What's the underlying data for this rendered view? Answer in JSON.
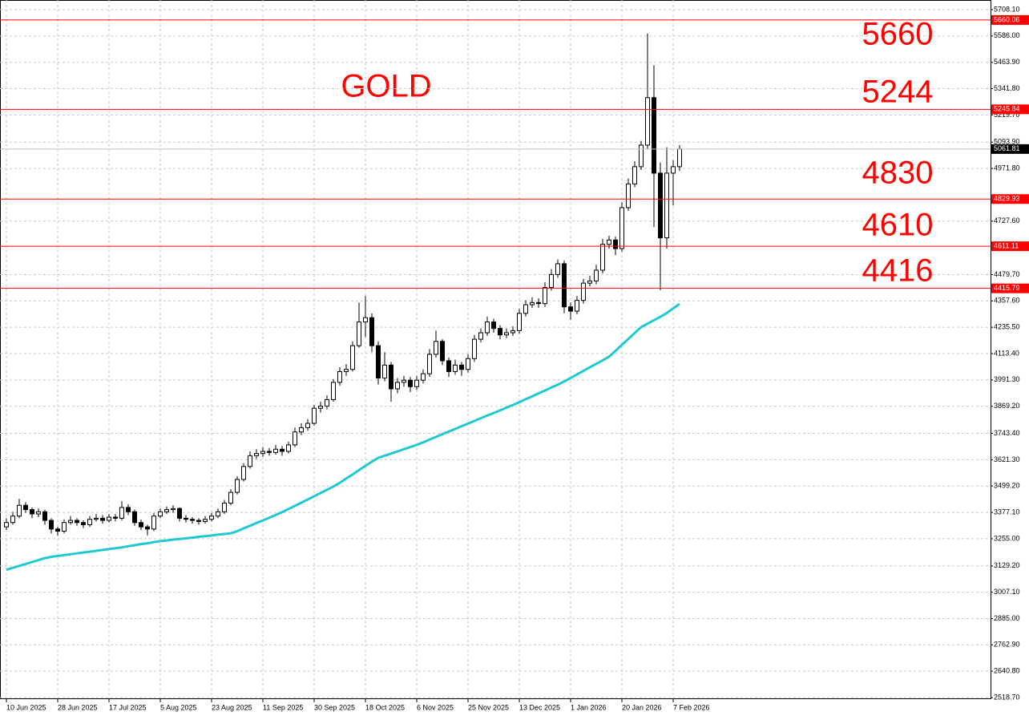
{
  "chart_data": {
    "type": "candlestick",
    "title": "GOLD",
    "annotations": [
      "5660",
      "5244",
      "4830",
      "4610",
      "4416"
    ],
    "ylim": [
      2518.7,
      5708.1
    ],
    "yticks": [
      {
        "value": 5708.1,
        "label": "5708.10"
      },
      {
        "value": 5586,
        "label": "5586.00"
      },
      {
        "value": 5463.9,
        "label": "5463.90"
      },
      {
        "value": 5341.8,
        "label": "5341.80"
      },
      {
        "value": 5219.7,
        "label": "5219.70"
      },
      {
        "value": 5093.9,
        "label": "5093.90"
      },
      {
        "value": 4971.8,
        "label": "4971.80"
      },
      {
        "value": 4727.6,
        "label": "4727.60"
      },
      {
        "value": 4479.7,
        "label": "4479.70"
      },
      {
        "value": 4357.6,
        "label": "4357.60"
      },
      {
        "value": 4235.5,
        "label": "4235.50"
      },
      {
        "value": 4113.4,
        "label": "4113.40"
      },
      {
        "value": 3991.3,
        "label": "3991.30"
      },
      {
        "value": 3869.2,
        "label": "3869.20"
      },
      {
        "value": 3743.4,
        "label": "3743.40"
      },
      {
        "value": 3621.3,
        "label": "3621.30"
      },
      {
        "value": 3499.2,
        "label": "3499.20"
      },
      {
        "value": 3377.1,
        "label": "3377.10"
      },
      {
        "value": 3255,
        "label": "3255.00"
      },
      {
        "value": 3129.2,
        "label": "3129.20"
      },
      {
        "value": 3007.1,
        "label": "3007.10"
      },
      {
        "value": 2885,
        "label": "2885.00"
      },
      {
        "value": 2762.9,
        "label": "2762.90"
      },
      {
        "value": 2640.8,
        "label": "2640.80"
      },
      {
        "value": 2518.7,
        "label": "2518.70"
      }
    ],
    "levels": [
      5660.06,
      5245.84,
      4829.93,
      4611.11,
      4415.79
    ],
    "level_color": "#ff0000",
    "last_price": 5061.81,
    "grid": true,
    "categories": [
      "10 Jun 2025",
      null,
      null,
      null,
      null,
      null,
      null,
      null,
      "28 Jun 2025",
      null,
      null,
      null,
      null,
      null,
      null,
      null,
      "17 Jul 2025",
      null,
      null,
      null,
      null,
      null,
      null,
      null,
      "5 Aug 2025",
      null,
      null,
      null,
      null,
      null,
      null,
      null,
      "23 Aug 2025",
      null,
      null,
      null,
      null,
      null,
      null,
      null,
      "11 Sep 2025",
      null,
      null,
      null,
      null,
      null,
      null,
      null,
      "30 Sep 2025",
      null,
      null,
      null,
      null,
      null,
      null,
      null,
      "18 Oct 2025",
      null,
      null,
      null,
      null,
      null,
      null,
      null,
      "6 Nov 2025",
      null,
      null,
      null,
      null,
      null,
      null,
      null,
      "25 Nov 2025",
      null,
      null,
      null,
      null,
      null,
      null,
      null,
      "13 Dec 2025",
      null,
      null,
      null,
      null,
      null,
      null,
      null,
      "1 Jan 2026",
      null,
      null,
      null,
      null,
      null,
      null,
      null,
      "20 Jan 2026",
      null,
      null,
      null,
      null,
      null,
      null,
      null,
      "7 Feb 2026",
      null
    ],
    "candles": [
      [
        3310,
        3350,
        3295,
        3330
      ],
      [
        3330,
        3380,
        3320,
        3360
      ],
      [
        3360,
        3440,
        3350,
        3410
      ],
      [
        3410,
        3425,
        3375,
        3390
      ],
      [
        3390,
        3400,
        3350,
        3370
      ],
      [
        3370,
        3395,
        3355,
        3380
      ],
      [
        3380,
        3390,
        3320,
        3340
      ],
      [
        3340,
        3350,
        3280,
        3300
      ],
      [
        3300,
        3310,
        3270,
        3290
      ],
      [
        3290,
        3345,
        3280,
        3330
      ],
      [
        3330,
        3360,
        3320,
        3340
      ],
      [
        3340,
        3350,
        3315,
        3330
      ],
      [
        3330,
        3340,
        3305,
        3320
      ],
      [
        3320,
        3360,
        3310,
        3345
      ],
      [
        3345,
        3370,
        3335,
        3350
      ],
      [
        3350,
        3365,
        3325,
        3340
      ],
      [
        3340,
        3370,
        3330,
        3355
      ],
      [
        3355,
        3370,
        3335,
        3350
      ],
      [
        3350,
        3430,
        3340,
        3400
      ],
      [
        3400,
        3415,
        3365,
        3380
      ],
      [
        3380,
        3390,
        3315,
        3330
      ],
      [
        3330,
        3345,
        3295,
        3310
      ],
      [
        3310,
        3320,
        3270,
        3300
      ],
      [
        3300,
        3375,
        3290,
        3360
      ],
      [
        3360,
        3395,
        3350,
        3380
      ],
      [
        3380,
        3405,
        3370,
        3390
      ],
      [
        3390,
        3410,
        3375,
        3395
      ],
      [
        3395,
        3400,
        3335,
        3350
      ],
      [
        3350,
        3365,
        3330,
        3345
      ],
      [
        3345,
        3355,
        3325,
        3340
      ],
      [
        3340,
        3350,
        3320,
        3335
      ],
      [
        3335,
        3360,
        3325,
        3345
      ],
      [
        3345,
        3375,
        3335,
        3360
      ],
      [
        3360,
        3395,
        3350,
        3380
      ],
      [
        3380,
        3435,
        3370,
        3420
      ],
      [
        3420,
        3485,
        3410,
        3470
      ],
      [
        3470,
        3545,
        3460,
        3530
      ],
      [
        3530,
        3605,
        3520,
        3590
      ],
      [
        3590,
        3660,
        3580,
        3640
      ],
      [
        3640,
        3670,
        3625,
        3650
      ],
      [
        3650,
        3680,
        3635,
        3660
      ],
      [
        3660,
        3675,
        3640,
        3655
      ],
      [
        3655,
        3690,
        3645,
        3670
      ],
      [
        3670,
        3685,
        3640,
        3660
      ],
      [
        3660,
        3705,
        3650,
        3690
      ],
      [
        3690,
        3770,
        3680,
        3750
      ],
      [
        3750,
        3790,
        3735,
        3770
      ],
      [
        3770,
        3810,
        3755,
        3790
      ],
      [
        3790,
        3875,
        3780,
        3860
      ],
      [
        3860,
        3890,
        3840,
        3870
      ],
      [
        3870,
        3920,
        3855,
        3900
      ],
      [
        3900,
        3995,
        3890,
        3980
      ],
      [
        3980,
        4050,
        3965,
        4030
      ],
      [
        4030,
        4065,
        4010,
        4040
      ],
      [
        4040,
        4170,
        4030,
        4150
      ],
      [
        4150,
        4350,
        4140,
        4260
      ],
      [
        4260,
        4380,
        4190,
        4280
      ],
      [
        4280,
        4300,
        4120,
        4150
      ],
      [
        4150,
        4170,
        3970,
        4000
      ],
      [
        4000,
        4120,
        3985,
        4060
      ],
      [
        4060,
        4075,
        3890,
        3950
      ],
      [
        3950,
        4000,
        3930,
        3980
      ],
      [
        3980,
        4010,
        3960,
        3990
      ],
      [
        3990,
        4005,
        3935,
        3960
      ],
      [
        3960,
        4010,
        3945,
        3990
      ],
      [
        3990,
        4040,
        3975,
        4020
      ],
      [
        4020,
        4135,
        4005,
        4110
      ],
      [
        4110,
        4220,
        4095,
        4170
      ],
      [
        4170,
        4180,
        4060,
        4080
      ],
      [
        4080,
        4095,
        4005,
        4030
      ],
      [
        4030,
        4085,
        4015,
        4060
      ],
      [
        4060,
        4075,
        4010,
        4040
      ],
      [
        4040,
        4110,
        4025,
        4090
      ],
      [
        4090,
        4200,
        4075,
        4180
      ],
      [
        4180,
        4230,
        4165,
        4210
      ],
      [
        4210,
        4285,
        4195,
        4260
      ],
      [
        4260,
        4275,
        4210,
        4230
      ],
      [
        4230,
        4245,
        4180,
        4200
      ],
      [
        4200,
        4230,
        4185,
        4210
      ],
      [
        4210,
        4240,
        4195,
        4220
      ],
      [
        4220,
        4320,
        4205,
        4300
      ],
      [
        4300,
        4360,
        4285,
        4340
      ],
      [
        4340,
        4375,
        4325,
        4350
      ],
      [
        4350,
        4370,
        4325,
        4345
      ],
      [
        4345,
        4445,
        4330,
        4420
      ],
      [
        4420,
        4505,
        4405,
        4480
      ],
      [
        4480,
        4550,
        4465,
        4530
      ],
      [
        4530,
        4545,
        4300,
        4330
      ],
      [
        4330,
        4350,
        4270,
        4310
      ],
      [
        4310,
        4380,
        4295,
        4360
      ],
      [
        4360,
        4460,
        4345,
        4440
      ],
      [
        4440,
        4475,
        4425,
        4450
      ],
      [
        4450,
        4525,
        4435,
        4500
      ],
      [
        4500,
        4645,
        4485,
        4620
      ],
      [
        4620,
        4660,
        4600,
        4640
      ],
      [
        4640,
        4655,
        4570,
        4600
      ],
      [
        4600,
        4815,
        4585,
        4790
      ],
      [
        4790,
        4925,
        4775,
        4900
      ],
      [
        4900,
        5005,
        4885,
        4980
      ],
      [
        4980,
        5100,
        4965,
        5080
      ],
      [
        5080,
        5597,
        5060,
        5300
      ],
      [
        5300,
        5450,
        4700,
        4950
      ],
      [
        4950,
        5000,
        4407,
        4650
      ],
      [
        4650,
        5070,
        4600,
        4950
      ],
      [
        4950,
        5010,
        4800,
        4980
      ],
      [
        4980,
        5080,
        4960,
        5061.81
      ]
    ],
    "ma": {
      "color": "#20c8d0",
      "values": [
        3111,
        3120,
        3129,
        3138,
        3147,
        3156,
        3165,
        3171,
        3175,
        3179,
        3183,
        3187,
        3191,
        3195,
        3199,
        3203,
        3207,
        3211,
        3215,
        3220,
        3225,
        3230,
        3234,
        3239,
        3244,
        3247,
        3251,
        3254,
        3257,
        3260,
        3264,
        3267,
        3270,
        3274,
        3277,
        3280,
        3290,
        3303,
        3315,
        3328,
        3340,
        3352,
        3365,
        3378,
        3393,
        3407,
        3422,
        3437,
        3452,
        3467,
        3482,
        3497,
        3514,
        3534,
        3553,
        3573,
        3593,
        3612,
        3630,
        3640,
        3650,
        3660,
        3670,
        3680,
        3690,
        3702,
        3715,
        3727,
        3740,
        3752,
        3764,
        3777,
        3789,
        3801,
        3814,
        3826,
        3838,
        3850,
        3863,
        3875,
        3888,
        3902,
        3915,
        3929,
        3942,
        3956,
        3969,
        3984,
        4000,
        4017,
        4033,
        4050,
        4066,
        4082,
        4099,
        4126,
        4154,
        4181,
        4209,
        4236,
        4252,
        4268,
        4284,
        4301,
        4323,
        4344
      ]
    }
  }
}
